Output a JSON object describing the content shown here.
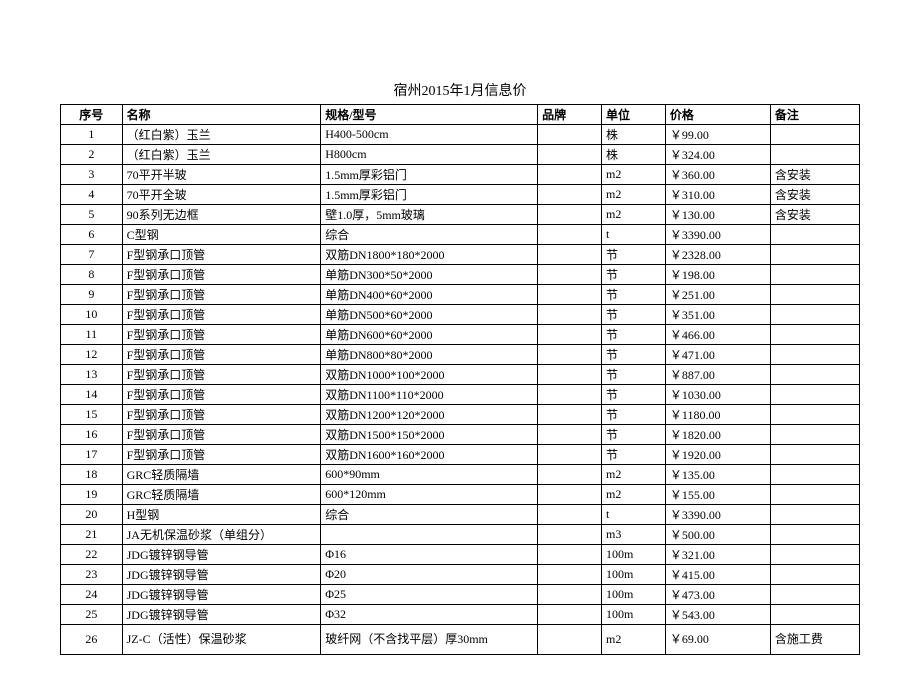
{
  "title": "宿州2015年1月信息价",
  "headers": {
    "seq": "序号",
    "name": "名称",
    "spec": "规格/型号",
    "brand": "品牌",
    "unit": "单位",
    "price": "价格",
    "note": "备注"
  },
  "rows": [
    {
      "seq": "1",
      "name": "（红白紫）玉兰",
      "spec": "H400-500cm",
      "brand": "",
      "unit": "株",
      "price": "￥99.00",
      "note": ""
    },
    {
      "seq": "2",
      "name": "（红白紫）玉兰",
      "spec": "H800cm",
      "brand": "",
      "unit": "株",
      "price": "￥324.00",
      "note": ""
    },
    {
      "seq": "3",
      "name": "70平开半玻",
      "spec": "1.5mm厚彩铝门",
      "brand": "",
      "unit": "m2",
      "price": "￥360.00",
      "note": "含安装"
    },
    {
      "seq": "4",
      "name": "70平开全玻",
      "spec": "1.5mm厚彩铝门",
      "brand": "",
      "unit": "m2",
      "price": "￥310.00",
      "note": "含安装"
    },
    {
      "seq": "5",
      "name": "90系列无边框",
      "spec": "壁1.0厚，5mm玻璃",
      "brand": "",
      "unit": "m2",
      "price": "￥130.00",
      "note": "含安装"
    },
    {
      "seq": "6",
      "name": "C型钢",
      "spec": "综合",
      "brand": "",
      "unit": "t",
      "price": "￥3390.00",
      "note": ""
    },
    {
      "seq": "7",
      "name": "F型钢承口顶管",
      "spec": "双筋DN1800*180*2000",
      "brand": "",
      "unit": "节",
      "price": "￥2328.00",
      "note": ""
    },
    {
      "seq": "8",
      "name": "F型钢承口顶管",
      "spec": "单筋DN300*50*2000",
      "brand": "",
      "unit": "节",
      "price": "￥198.00",
      "note": ""
    },
    {
      "seq": "9",
      "name": "F型钢承口顶管",
      "spec": "单筋DN400*60*2000",
      "brand": "",
      "unit": "节",
      "price": "￥251.00",
      "note": ""
    },
    {
      "seq": "10",
      "name": "F型钢承口顶管",
      "spec": "单筋DN500*60*2000",
      "brand": "",
      "unit": "节",
      "price": "￥351.00",
      "note": ""
    },
    {
      "seq": "11",
      "name": "F型钢承口顶管",
      "spec": "单筋DN600*60*2000",
      "brand": "",
      "unit": "节",
      "price": "￥466.00",
      "note": ""
    },
    {
      "seq": "12",
      "name": "F型钢承口顶管",
      "spec": "单筋DN800*80*2000",
      "brand": "",
      "unit": "节",
      "price": "￥471.00",
      "note": ""
    },
    {
      "seq": "13",
      "name": "F型钢承口顶管",
      "spec": "双筋DN1000*100*2000",
      "brand": "",
      "unit": "节",
      "price": "￥887.00",
      "note": ""
    },
    {
      "seq": "14",
      "name": "F型钢承口顶管",
      "spec": "双筋DN1100*110*2000",
      "brand": "",
      "unit": "节",
      "price": "￥1030.00",
      "note": ""
    },
    {
      "seq": "15",
      "name": "F型钢承口顶管",
      "spec": "双筋DN1200*120*2000",
      "brand": "",
      "unit": "节",
      "price": "￥1180.00",
      "note": ""
    },
    {
      "seq": "16",
      "name": "F型钢承口顶管",
      "spec": "双筋DN1500*150*2000",
      "brand": "",
      "unit": "节",
      "price": "￥1820.00",
      "note": ""
    },
    {
      "seq": "17",
      "name": "F型钢承口顶管",
      "spec": "双筋DN1600*160*2000",
      "brand": "",
      "unit": "节",
      "price": "￥1920.00",
      "note": ""
    },
    {
      "seq": "18",
      "name": "GRC轻质隔墙",
      "spec": "600*90mm",
      "brand": "",
      "unit": "m2",
      "price": "￥135.00",
      "note": ""
    },
    {
      "seq": "19",
      "name": "GRC轻质隔墙",
      "spec": "600*120mm",
      "brand": "",
      "unit": "m2",
      "price": "￥155.00",
      "note": ""
    },
    {
      "seq": "20",
      "name": "H型钢",
      "spec": "综合",
      "brand": "",
      "unit": "t",
      "price": "￥3390.00",
      "note": ""
    },
    {
      "seq": "21",
      "name": "JA无机保温砂浆（单组分）",
      "spec": "",
      "brand": "",
      "unit": "m3",
      "price": "￥500.00",
      "note": ""
    },
    {
      "seq": "22",
      "name": "JDG镀锌钢导管",
      "spec": "Φ16",
      "brand": "",
      "unit": "100m",
      "price": "￥321.00",
      "note": ""
    },
    {
      "seq": "23",
      "name": "JDG镀锌钢导管",
      "spec": "Φ20",
      "brand": "",
      "unit": "100m",
      "price": "￥415.00",
      "note": ""
    },
    {
      "seq": "24",
      "name": "JDG镀锌钢导管",
      "spec": "Φ25",
      "brand": "",
      "unit": "100m",
      "price": "￥473.00",
      "note": ""
    },
    {
      "seq": "25",
      "name": "JDG镀锌钢导管",
      "spec": "Φ32",
      "brand": "",
      "unit": "100m",
      "price": "￥543.00",
      "note": ""
    },
    {
      "seq": "26",
      "name": "JZ-C（活性）保温砂浆",
      "spec": "玻纤网（不含找平层）厚30mm",
      "brand": "",
      "unit": "m2",
      "price": "￥69.00",
      "note": "含施工费",
      "multiline": true
    }
  ]
}
